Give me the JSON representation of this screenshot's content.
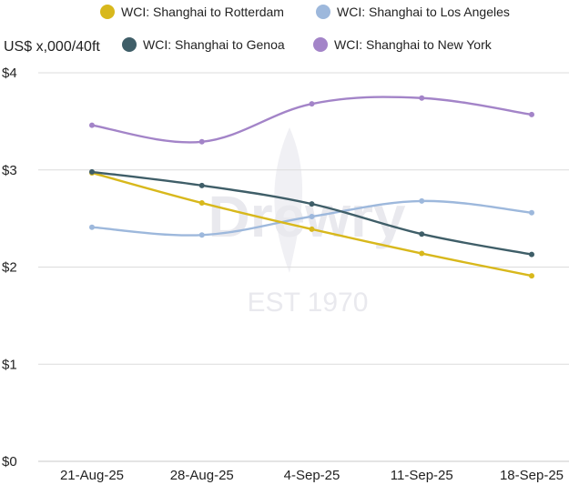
{
  "watermark": {
    "brand": "Drewry",
    "est": "EST 1970"
  },
  "chart_data": {
    "type": "line",
    "ylabel": "US$ x,000/40ft",
    "categories": [
      "21-Aug-25",
      "28-Aug-25",
      "4-Sep-25",
      "11-Sep-25",
      "18-Sep-25"
    ],
    "ylim": [
      0,
      4
    ],
    "yticks": [
      {
        "value": 0,
        "label": "$0"
      },
      {
        "value": 1,
        "label": "$1"
      },
      {
        "value": 2,
        "label": "$2"
      },
      {
        "value": 3,
        "label": "$3"
      },
      {
        "value": 4,
        "label": "$4"
      }
    ],
    "grid": "horizontal",
    "legend_position": "top",
    "series": [
      {
        "name": "WCI: Shanghai to Rotterdam",
        "color": "#d8b81c",
        "values": [
          2.97,
          2.66,
          2.39,
          2.14,
          1.91
        ]
      },
      {
        "name": "WCI: Shanghai to Los Angeles",
        "color": "#9db8dc",
        "values": [
          2.41,
          2.33,
          2.52,
          2.68,
          2.56
        ]
      },
      {
        "name": "WCI: Shanghai to Genoa",
        "color": "#3f5e68",
        "values": [
          2.98,
          2.84,
          2.65,
          2.34,
          2.13
        ]
      },
      {
        "name": "WCI: Shanghai to New York",
        "color": "#a384c8",
        "values": [
          3.46,
          3.29,
          3.68,
          3.74,
          3.57
        ]
      }
    ]
  }
}
